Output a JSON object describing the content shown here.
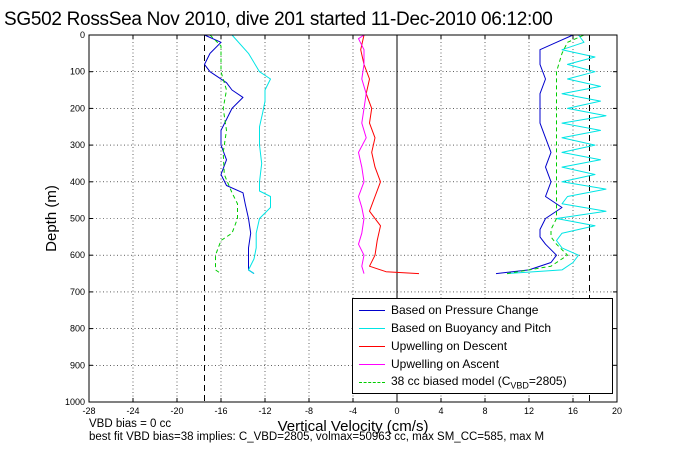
{
  "title": "SG502 RossSea Nov 2010, dive 201 started 11-Dec-2010 06:12:00",
  "notes": {
    "line1": "VBD bias = 0 cc",
    "line2": "best fit VBD bias=38 implies: C_VBD=2805, volmax=50963 cc, max SM_CC=585, max M"
  },
  "chart_data": {
    "type": "line",
    "xlabel": "Vertical Velocity (cm/s)",
    "ylabel": "Depth (m)",
    "xlim": [
      -28,
      20
    ],
    "ylim": [
      0,
      1000
    ],
    "y_reversed": true,
    "x_ticks": [
      "-28",
      "-24",
      "-20",
      "-16",
      "-12",
      "-8",
      "-4",
      "0",
      "4",
      "8",
      "12",
      "16",
      "20"
    ],
    "y_ticks": [
      "0",
      "100",
      "200",
      "300",
      "400",
      "500",
      "600",
      "700",
      "800",
      "900",
      "1000"
    ],
    "grid": true,
    "legend_position": "bottom-right",
    "reference_lines": {
      "dashed_vertical_x": [
        -17.5,
        17.5
      ],
      "solid_vertical_x": [
        0
      ]
    },
    "series": [
      {
        "name": "Based on Pressure Change",
        "color": "#0000cc",
        "style": "solid",
        "segments": [
          {
            "depth": [
              0,
              20,
              50,
              80,
              100,
              130,
              150,
              170,
              200,
              230,
              260,
              300,
              340,
              380,
              410,
              430,
              460,
              500,
              540,
              580,
              610,
              640,
              650
            ],
            "velocity": [
              -17.5,
              -16,
              -17,
              -17.5,
              -17,
              -15.5,
              -15,
              -14,
              -15,
              -15.5,
              -16,
              -16,
              -15.5,
              -16,
              -15.5,
              -14,
              -13.8,
              -13.5,
              -13.3,
              -13.5,
              -13.5,
              -13.5,
              -13
            ]
          },
          {
            "depth": [
              650,
              640,
              620,
              600,
              570,
              550,
              530,
              500,
              470,
              440,
              400,
              360,
              320,
              280,
              240,
              200,
              160,
              120,
              80,
              40,
              20,
              0
            ],
            "velocity": [
              9,
              12,
              14,
              14.5,
              13.5,
              13,
              13,
              13.5,
              15,
              13.5,
              14,
              13.5,
              14,
              13.5,
              13,
              13,
              13,
              13.5,
              13,
              13,
              14.5,
              16
            ]
          }
        ]
      },
      {
        "name": "Based on Buoyancy and Pitch",
        "color": "#00e5e5",
        "style": "solid",
        "segments": [
          {
            "depth": [
              0,
              50,
              100,
              120,
              150,
              180,
              210,
              250,
              300,
              350,
              400,
              425,
              440,
              470,
              500,
              540,
              580,
              610,
              640,
              650
            ],
            "velocity": [
              -15,
              -13.5,
              -12.5,
              -11.5,
              -12,
              -12,
              -12.2,
              -12.5,
              -12.5,
              -12.3,
              -12.5,
              -12.5,
              -11.5,
              -11.5,
              -12.5,
              -12.8,
              -12.8,
              -13,
              -13.5,
              -13
            ]
          },
          {
            "depth": [
              650,
              640,
              620,
              600,
              580,
              560,
              540,
              520,
              500,
              480,
              460,
              440,
              420,
              400,
              380,
              360,
              340,
              320,
              300,
              280,
              260,
              240,
              220,
              200,
              180,
              160,
              140,
              120,
              100,
              80,
              60,
              40,
              20,
              0
            ],
            "velocity": [
              10,
              15,
              16,
              16.5,
              15,
              14.5,
              15,
              18,
              14.5,
              19,
              15,
              15.5,
              19,
              15,
              18,
              15,
              18.5,
              15,
              18,
              15,
              18.5,
              15,
              19,
              15.5,
              18.5,
              15,
              18.5,
              15.5,
              18,
              15.5,
              18,
              15,
              17,
              16.5
            ]
          }
        ]
      },
      {
        "name": "Upwelling on Descent",
        "color": "#ff0000",
        "style": "solid",
        "segments": [
          {
            "depth": [
              0,
              40,
              80,
              120,
              160,
              200,
              240,
              280,
              320,
              360,
              400,
              440,
              480,
              520,
              560,
              600,
              630,
              645,
              650
            ],
            "velocity": [
              -3,
              -3.3,
              -3,
              -2.5,
              -2.8,
              -2.3,
              -2.5,
              -2,
              -2.3,
              -2,
              -1.5,
              -2,
              -2.5,
              -1.5,
              -1.8,
              -2,
              -2.5,
              -1,
              2
            ]
          }
        ]
      },
      {
        "name": "Upwelling on Ascent",
        "color": "#ff00ff",
        "style": "solid",
        "segments": [
          {
            "depth": [
              650,
              630,
              600,
              570,
              540,
              500,
              470,
              440,
              400,
              360,
              320,
              280,
              240,
              200,
              160,
              120,
              80,
              40,
              10,
              0
            ],
            "velocity": [
              -3,
              -3.2,
              -3,
              -3.5,
              -3.2,
              -3,
              -3.2,
              -3.5,
              -3,
              -3.2,
              -3.5,
              -2.8,
              -3.2,
              -3,
              -2.8,
              -3.2,
              -3,
              -3,
              -3.5,
              -3
            ]
          }
        ]
      },
      {
        "name": "38 cc biased model (C_VBD=2805)",
        "legend_base": "38 cc biased model (C",
        "legend_sub": "VBD",
        "legend_tail": "=2805)",
        "color": "#00cc00",
        "style": "dashed",
        "segments": [
          {
            "depth": [
              0,
              30,
              60,
              100,
              150,
              200,
              260,
              320,
              380,
              430,
              460,
              500,
              540,
              560,
              600,
              640,
              650
            ],
            "velocity": [
              -17,
              -16,
              -16,
              -16,
              -15.5,
              -15.8,
              -15.5,
              -15.8,
              -15.7,
              -15,
              -14.5,
              -14.5,
              -15,
              -16,
              -16.5,
              -16.5,
              -16
            ]
          },
          {
            "depth": [
              650,
              630,
              600,
              570,
              550,
              530,
              500,
              440,
              380,
              320,
              260,
              200,
              150,
              100,
              50,
              20,
              0
            ],
            "velocity": [
              10,
              14,
              15.5,
              14.5,
              14,
              14,
              14.5,
              14.5,
              14.5,
              14.5,
              14.5,
              14.5,
              14.5,
              14.5,
              15,
              15.5,
              17
            ]
          }
        ]
      }
    ]
  }
}
